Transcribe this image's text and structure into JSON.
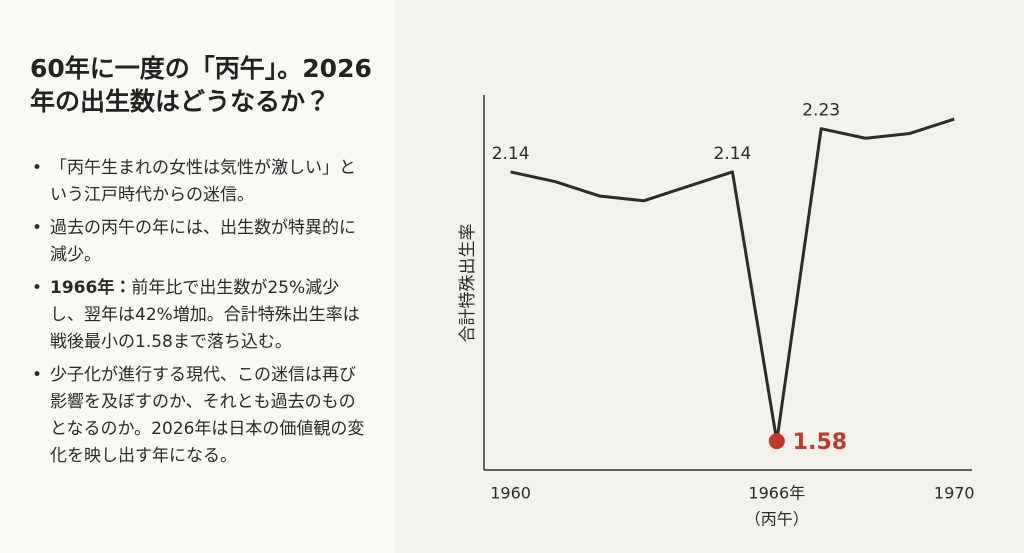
{
  "panel": {
    "title": "60年に一度の「丙午」。2026年の出生数はどうなるか？",
    "bullets": [
      {
        "text": "「丙午生まれの女性は気性が激しい」という江戸時代からの迷信。"
      },
      {
        "text": "過去の丙午の年には、出生数が特異的に減少。"
      },
      {
        "bold": "1966年：",
        "text": "前年比で出生数が25%減少し、翌年は42%増加。合計特殊出生率は戦後最小の1.58まで落ち込む。"
      },
      {
        "text": "少子化が進行する現代、この迷信は再び影響を及ぼすのか、それとも過去のものとなるのか。2026年は日本の価値観の変化を映し出す年になる。"
      }
    ]
  },
  "chart_data": {
    "type": "line",
    "ylabel": "合計特殊出生率",
    "x": [
      1960,
      1961,
      1962,
      1963,
      1964,
      1965,
      1966,
      1967,
      1968,
      1969,
      1970
    ],
    "values": [
      2.14,
      2.12,
      2.09,
      2.08,
      2.11,
      2.14,
      1.58,
      2.23,
      2.21,
      2.22,
      2.25
    ],
    "data_labels": [
      true,
      false,
      false,
      false,
      false,
      true,
      true,
      true,
      false,
      false,
      false
    ],
    "color": "#2b2b2b",
    "marker": {
      "index": 6,
      "color": "#c0392b"
    },
    "xlim": [
      1959.4,
      1970.4
    ],
    "ylim": [
      1.52,
      2.3
    ],
    "xticks": [
      1960,
      {
        "value": 1966,
        "label": "1966年"
      },
      1970
    ],
    "xtick_note": {
      "value": 1966,
      "label": "（丙午）"
    }
  }
}
